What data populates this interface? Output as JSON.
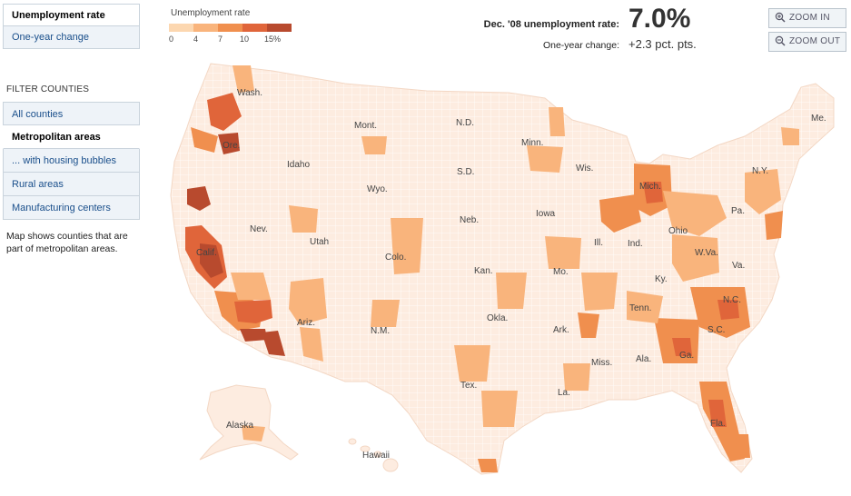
{
  "tabs": [
    {
      "label": "Unemployment rate",
      "active": true
    },
    {
      "label": "One-year change",
      "active": false
    }
  ],
  "filters": {
    "heading": "FILTER COUNTIES",
    "items": [
      {
        "label": "All counties",
        "active": false
      },
      {
        "label": "Metropolitan areas",
        "active": true
      },
      {
        "label": "... with housing bubbles",
        "active": false
      },
      {
        "label": "Rural areas",
        "active": false
      },
      {
        "label": "Manufacturing centers",
        "active": false
      }
    ],
    "note": "Map shows counties that are part of metropolitan areas."
  },
  "legend": {
    "title": "Unemployment rate",
    "colors": [
      "#fcd7b0",
      "#f9b47c",
      "#f08f4e",
      "#e0653a",
      "#b84a2e"
    ],
    "ticks": [
      "0",
      "4",
      "7",
      "10",
      "15%"
    ]
  },
  "stats": {
    "rate_label": "Dec. '08 unemployment rate:",
    "rate_value": "7.0%",
    "change_label": "One-year change:",
    "change_value": "+2.3 pct. pts."
  },
  "zoom": {
    "in_label": "ZOOM IN",
    "out_label": "ZOOM OUT",
    "in_icon": "zoom-in-icon",
    "out_icon": "zoom-out-icon"
  },
  "map": {
    "state_labels": [
      {
        "name": "Wash."
      },
      {
        "name": "Ore."
      },
      {
        "name": "Idaho"
      },
      {
        "name": "Mont."
      },
      {
        "name": "Wyo."
      },
      {
        "name": "Nev."
      },
      {
        "name": "Calif."
      },
      {
        "name": "Utah"
      },
      {
        "name": "Colo."
      },
      {
        "name": "Ariz."
      },
      {
        "name": "N.M."
      },
      {
        "name": "N.D."
      },
      {
        "name": "S.D."
      },
      {
        "name": "Neb."
      },
      {
        "name": "Kan."
      },
      {
        "name": "Okla."
      },
      {
        "name": "Tex."
      },
      {
        "name": "Minn."
      },
      {
        "name": "Iowa"
      },
      {
        "name": "Mo."
      },
      {
        "name": "Ark."
      },
      {
        "name": "La."
      },
      {
        "name": "Wis."
      },
      {
        "name": "Ill."
      },
      {
        "name": "Miss."
      },
      {
        "name": "Mich."
      },
      {
        "name": "Ind."
      },
      {
        "name": "Ky."
      },
      {
        "name": "Tenn."
      },
      {
        "name": "Ala."
      },
      {
        "name": "Ga."
      },
      {
        "name": "Fla."
      },
      {
        "name": "Ohio"
      },
      {
        "name": "W.Va."
      },
      {
        "name": "Va."
      },
      {
        "name": "N.C."
      },
      {
        "name": "S.C."
      },
      {
        "name": "Pa."
      },
      {
        "name": "N.Y."
      },
      {
        "name": "Me."
      },
      {
        "name": "Alaska"
      },
      {
        "name": "Hawaii"
      }
    ]
  }
}
